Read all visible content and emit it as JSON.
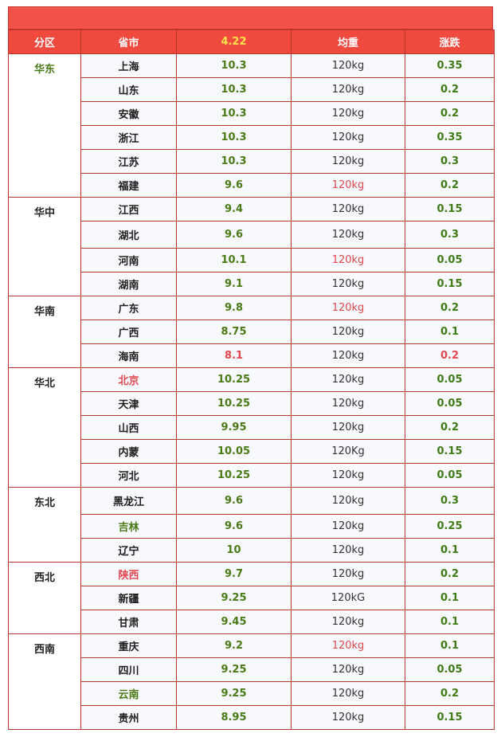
{
  "headers": {
    "region": "分区",
    "province": "省市",
    "date": "4.22",
    "weight": "均重",
    "change": "涨跌"
  },
  "groups": [
    {
      "region": "华东",
      "region_color": "green",
      "rows": [
        {
          "province": "上海",
          "price": "10.3",
          "weight": "120kg",
          "change": "0.35"
        },
        {
          "province": "山东",
          "price": "10.3",
          "weight": "120kg",
          "change": "0.2"
        },
        {
          "province": "安徽",
          "price": "10.3",
          "weight": "120kg",
          "change": "0.2"
        },
        {
          "province": "浙江",
          "price": "10.3",
          "weight": "120kg",
          "change": "0.35"
        },
        {
          "province": "江苏",
          "price": "10.3",
          "weight": "120kg",
          "change": "0.3"
        },
        {
          "province": "福建",
          "price": "9.6",
          "weight": "120kg",
          "weight_color": "red",
          "change": "0.2"
        }
      ]
    },
    {
      "region": "华中",
      "rows": [
        {
          "province": "江西",
          "price": "9.4",
          "weight": "120kg",
          "change": "0.15"
        },
        {
          "province": "湖北",
          "price": "9.6",
          "weight": "120kg",
          "change": "0.3"
        },
        {
          "province": "河南",
          "price": "10.1",
          "weight": "120kg",
          "weight_color": "red",
          "change": "0.05"
        },
        {
          "province": "湖南",
          "price": "9.1",
          "weight": "120kg",
          "change": "0.15"
        }
      ]
    },
    {
      "region": "华南",
      "rows": [
        {
          "province": "广东",
          "price": "9.8",
          "weight": "120kg",
          "weight_color": "red",
          "change": "0.2"
        },
        {
          "province": "广西",
          "price": "8.75",
          "weight": "120kg",
          "change": "0.1"
        },
        {
          "province": "海南",
          "price": "8.1",
          "price_color": "red",
          "weight": "120kg",
          "change": "0.2",
          "change_color": "red"
        }
      ]
    },
    {
      "region": "华北",
      "rows": [
        {
          "province": "北京",
          "province_color": "red",
          "price": "10.25",
          "weight": "120kg",
          "change": "0.05"
        },
        {
          "province": "天津",
          "price": "10.25",
          "weight": "120kg",
          "change": "0.05"
        },
        {
          "province": "山西",
          "price": "9.95",
          "weight": "120kg",
          "change": "0.2"
        },
        {
          "province": "内蒙",
          "price": "10.05",
          "weight": "120Kg",
          "change": "0.15"
        },
        {
          "province": "河北",
          "price": "10.25",
          "weight": "120kg",
          "change": "0.05"
        }
      ]
    },
    {
      "region": "东北",
      "rows": [
        {
          "province": "黑龙江",
          "price": "9.6",
          "weight": "120kg",
          "change": "0.3"
        },
        {
          "province": "吉林",
          "province_color": "green",
          "price": "9.6",
          "weight": "120kg",
          "change": "0.25"
        },
        {
          "province": "辽宁",
          "price": "10",
          "weight": "120kg",
          "change": "0.1"
        }
      ]
    },
    {
      "region": "西北",
      "rows": [
        {
          "province": "陕西",
          "province_color": "red",
          "price": "9.7",
          "weight": "120kg",
          "change": "0.2"
        },
        {
          "province": "新疆",
          "price": "9.25",
          "weight": "120kG",
          "change": "0.1"
        },
        {
          "province": "甘肃",
          "price": "9.45",
          "weight": "120kg",
          "change": "0.1"
        }
      ]
    },
    {
      "region": "西南",
      "rows": [
        {
          "province": "重庆",
          "price": "9.2",
          "weight": "120kg",
          "weight_color": "red",
          "change": "0.1"
        },
        {
          "province": "四川",
          "price": "9.25",
          "weight": "120kg",
          "change": "0.05"
        },
        {
          "province": "云南",
          "province_color": "green",
          "price": "9.25",
          "weight": "120kg",
          "change": "0.2"
        },
        {
          "province": "贵州",
          "price": "8.95",
          "weight": "120kg",
          "change": "0.15"
        }
      ]
    }
  ]
}
